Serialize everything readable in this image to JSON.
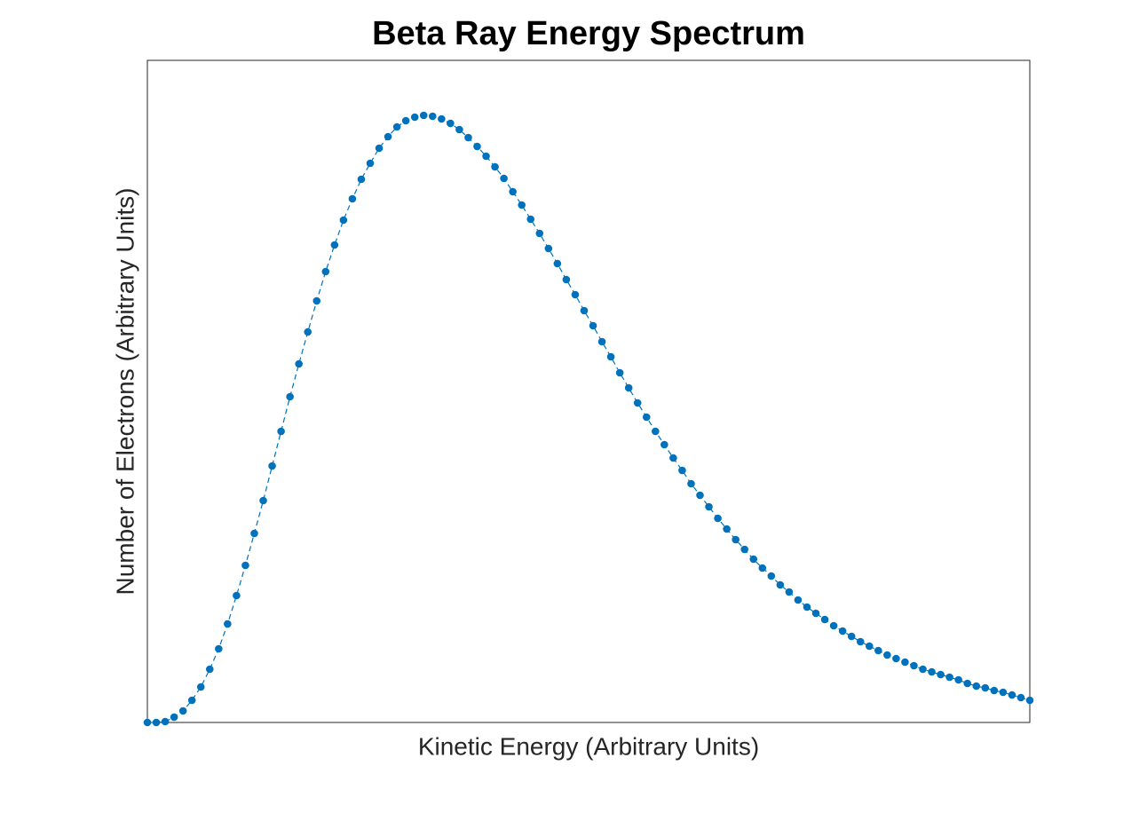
{
  "chart_data": {
    "type": "line",
    "title": "Beta Ray Energy Spectrum",
    "x_label": "Kinetic Energy (Arbitrary Units)",
    "y_label": "Number of Electrons (Arbitrary Units)",
    "x": [
      0,
      1,
      2,
      3,
      4,
      5,
      6,
      7,
      8,
      9,
      10,
      11,
      12,
      13,
      14,
      15,
      16,
      17,
      18,
      19,
      20,
      21,
      22,
      23,
      24,
      25,
      26,
      27,
      28,
      29,
      30,
      31,
      32,
      33,
      34,
      35,
      36,
      37,
      38,
      39,
      40,
      41,
      42,
      43,
      44,
      45,
      46,
      47,
      48,
      49,
      50,
      51,
      52,
      53,
      54,
      55,
      56,
      57,
      58,
      59,
      60,
      61,
      62,
      63,
      64,
      65,
      66,
      67,
      68,
      69,
      70,
      71,
      72,
      73,
      74,
      75,
      76,
      77,
      78,
      79,
      80,
      81,
      82,
      83,
      84,
      85,
      86,
      87,
      88,
      89,
      90,
      91,
      92,
      93,
      94,
      95,
      96,
      97,
      98,
      99
    ],
    "series": [
      {
        "color": "#0072bd",
        "values": [
          0,
          0,
          1,
          6,
          13,
          25,
          40,
          60,
          83,
          111,
          143,
          177,
          213,
          250,
          289,
          328,
          367,
          404,
          440,
          475,
          508,
          538,
          566,
          590,
          612,
          630,
          647,
          660,
          671,
          678,
          682,
          684,
          683,
          680,
          675,
          668,
          659,
          649,
          638,
          626,
          613,
          598,
          583,
          567,
          551,
          534,
          517,
          499,
          482,
          464,
          447,
          429,
          412,
          394,
          377,
          360,
          344,
          328,
          313,
          298,
          284,
          269,
          256,
          243,
          230,
          218,
          206,
          195,
          184,
          174,
          165,
          155,
          147,
          138,
          130,
          123,
          116,
          109,
          103,
          97,
          91,
          86,
          81,
          76,
          72,
          68,
          64,
          60,
          57,
          54,
          51,
          48,
          44,
          41,
          39,
          36,
          34,
          31,
          28,
          25
        ]
      }
    ],
    "xlim": [
      0,
      99
    ],
    "ylim": [
      0,
      746
    ]
  }
}
